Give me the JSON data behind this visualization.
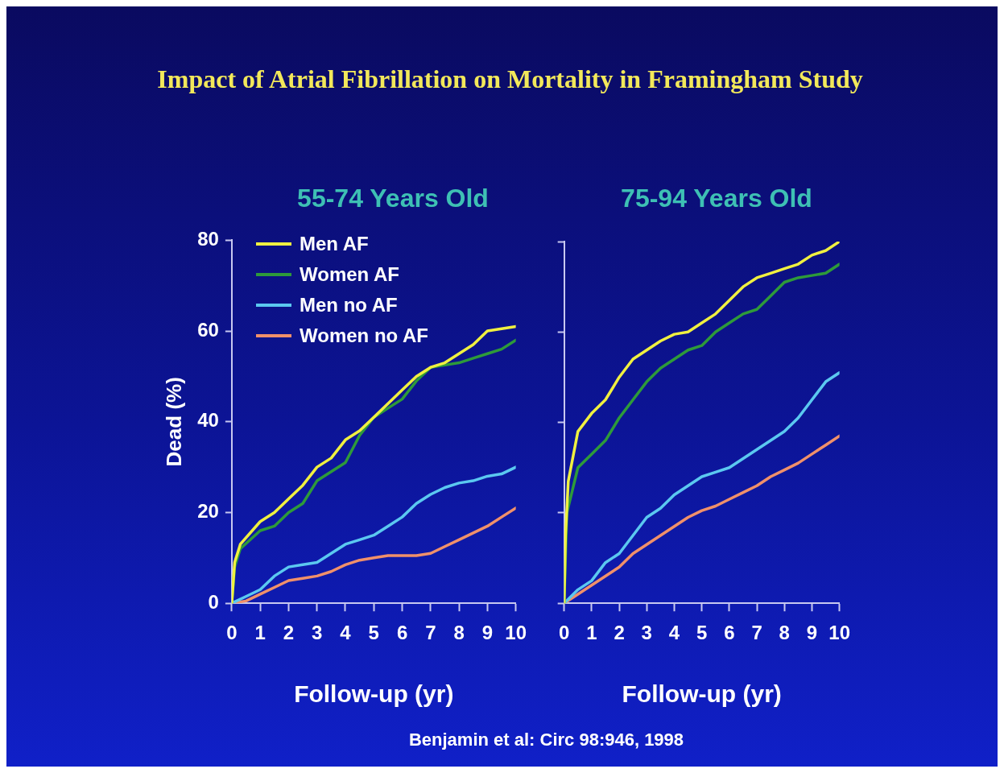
{
  "chart_data": [
    {
      "type": "line",
      "title": "Impact of Atrial Fibrillation on Mortality in Framingham Study",
      "subtitle": "55-74 Years Old",
      "xlabel": "Follow-up (yr)",
      "ylabel": "Dead (%)",
      "xlim": [
        0,
        10
      ],
      "xticks": [
        0,
        1,
        2,
        3,
        4,
        5,
        6,
        7,
        8,
        9,
        10
      ],
      "ylim": [
        0,
        80
      ],
      "yticks": [
        0,
        20,
        40,
        60,
        80
      ],
      "grid": false,
      "legend": "top left",
      "marker": "none",
      "line_style": "solid",
      "series": [
        {
          "name": "Men AF",
          "color": "#f0f040",
          "x": [
            0,
            0.1,
            0.3,
            1,
            1.5,
            2,
            2.5,
            3,
            3.5,
            4,
            4.5,
            5,
            5.5,
            6,
            6.5,
            7,
            7.5,
            8,
            8.5,
            9,
            9.5,
            10
          ],
          "values": [
            0,
            9,
            13,
            18,
            20,
            23,
            26,
            30,
            32,
            36,
            38,
            41,
            44,
            47,
            50,
            52,
            53,
            55,
            57,
            60,
            60.5,
            61
          ]
        },
        {
          "name": "Women AF",
          "color": "#2e9a3a",
          "x": [
            0,
            0.1,
            0.3,
            1,
            1.5,
            2,
            2.5,
            3,
            3.5,
            4,
            4.5,
            5,
            5.5,
            6,
            6.5,
            7,
            7.5,
            8,
            8.5,
            9,
            9.5,
            10
          ],
          "values": [
            0,
            8,
            12,
            16,
            17,
            20,
            22,
            27,
            29,
            31,
            37,
            41,
            43,
            45,
            49,
            52,
            52.5,
            53,
            54,
            55,
            56,
            58
          ]
        },
        {
          "name": "Men no AF",
          "color": "#5bc8f0",
          "x": [
            0,
            0.5,
            1,
            1.5,
            2,
            2.5,
            3,
            3.5,
            4,
            4.5,
            5,
            5.5,
            6,
            6.5,
            7,
            7.5,
            8,
            8.5,
            9,
            9.5,
            10
          ],
          "values": [
            0,
            1.5,
            3,
            6,
            8,
            8.5,
            9,
            11,
            13,
            14,
            15,
            17,
            19,
            22,
            24,
            25.5,
            26.5,
            27,
            28,
            28.5,
            30
          ]
        },
        {
          "name": "Women no AF",
          "color": "#f0906a",
          "x": [
            0,
            0.5,
            1,
            1.5,
            2,
            2.5,
            3,
            3.5,
            4,
            4.5,
            5,
            5.5,
            6,
            6.5,
            7,
            7.5,
            8,
            8.5,
            9,
            9.5,
            10
          ],
          "values": [
            0,
            0.5,
            2,
            3.5,
            5,
            5.5,
            6,
            7,
            8.5,
            9.5,
            10,
            10.5,
            10.5,
            10.5,
            11,
            12.5,
            14,
            15.5,
            17,
            19,
            21
          ]
        }
      ]
    },
    {
      "type": "line",
      "subtitle": "75-94 Years Old",
      "xlabel": "Follow-up (yr)",
      "xlim": [
        0,
        10
      ],
      "xticks": [
        0,
        1,
        2,
        3,
        4,
        5,
        6,
        7,
        8,
        9,
        10
      ],
      "ylim": [
        0,
        80
      ],
      "yticks": [
        {
          "value": 0,
          "label": null
        },
        {
          "value": 20,
          "label": null
        },
        {
          "value": 40,
          "label": null
        },
        {
          "value": 60,
          "label": null
        },
        {
          "value": 80,
          "label": null
        }
      ],
      "tick_labels": "x",
      "grid": false,
      "marker": "none",
      "line_style": "solid",
      "annotations": [
        "Benjamin et al: Circ 98:946, 1998"
      ],
      "series": [
        {
          "color": "#f0f040",
          "x": [
            0,
            0.05,
            0.15,
            0.5,
            1,
            1.5,
            2,
            2.5,
            3,
            3.5,
            4,
            4.5,
            5,
            5.5,
            6,
            6.5,
            7,
            7.5,
            8,
            8.5,
            9,
            9.5,
            10
          ],
          "values": [
            0,
            15,
            27,
            38,
            42,
            45,
            50,
            54,
            56,
            58,
            59.5,
            60,
            62,
            64,
            67,
            70,
            72,
            73,
            74,
            75,
            77,
            78,
            80
          ]
        },
        {
          "color": "#2e9a3a",
          "x": [
            0,
            0.1,
            0.3,
            0.5,
            1,
            1.5,
            2,
            2.5,
            3,
            3.5,
            4,
            4.5,
            5,
            5.5,
            6,
            6.5,
            7,
            7.5,
            8,
            8.5,
            9,
            9.5,
            10
          ],
          "values": [
            0,
            20,
            25,
            30,
            33,
            36,
            41,
            45,
            49,
            52,
            54,
            56,
            57,
            60,
            62,
            64,
            65,
            68,
            71,
            72,
            72.5,
            73,
            75
          ]
        },
        {
          "color": "#5bc8f0",
          "x": [
            0,
            0.5,
            1,
            1.5,
            2,
            2.5,
            3,
            3.5,
            4,
            4.5,
            5,
            5.5,
            6,
            6.5,
            7,
            7.5,
            8,
            8.5,
            9,
            9.5,
            10
          ],
          "values": [
            0,
            3,
            5,
            9,
            11,
            15,
            19,
            21,
            24,
            26,
            28,
            29,
            30,
            32,
            34,
            36,
            38,
            41,
            45,
            49,
            51
          ]
        },
        {
          "color": "#f0906a",
          "x": [
            0,
            0.5,
            1,
            1.5,
            2,
            2.5,
            3,
            3.5,
            4,
            4.5,
            5,
            5.5,
            6,
            6.5,
            7,
            7.5,
            8,
            8.5,
            9,
            9.5,
            10
          ],
          "values": [
            0,
            2,
            4,
            6,
            8,
            11,
            13,
            15,
            17,
            19,
            20.5,
            21.5,
            23,
            24.5,
            26,
            28,
            29.5,
            31,
            33,
            35,
            37
          ]
        }
      ]
    }
  ]
}
